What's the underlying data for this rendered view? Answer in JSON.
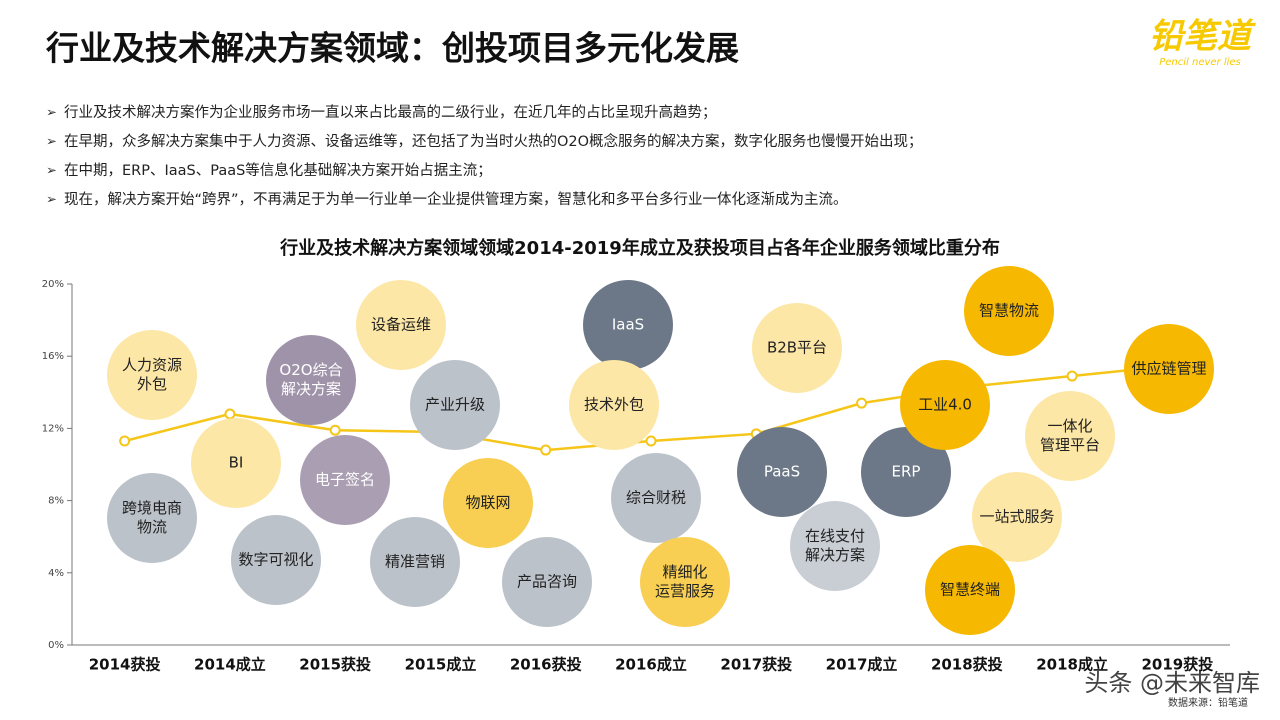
{
  "header": {
    "title": "行业及技术解决方案领域：创投项目多元化发展",
    "bullets": [
      "行业及技术解决方案作为企业服务市场一直以来占比最高的二级行业，在近几年的占比呈现升高趋势；",
      "在早期，众多解决方案集中于人力资源、设备运维等，还包括了为当时火热的O2O概念服务的解决方案，数字化服务也慢慢开始出现；",
      "在中期，ERP、IaaS、PaaS等信息化基础解决方案开始占据主流；",
      "现在，解决方案开始“跨界”，不再满足于为单一行业单一企业提供管理方案，智慧化和多平台多行业一体化逐渐成为主流。"
    ]
  },
  "logo": {
    "text": "铅笔道",
    "tagline": "Pencil never lies"
  },
  "chart_data": {
    "type": "line",
    "title": "行业及技术解决方案领域领域2014-2019年成立及获投项目占各年企业服务领域比重分布",
    "categories": [
      "2014获投",
      "2014成立",
      "2015获投",
      "2015成立",
      "2016获投",
      "2016成立",
      "2017获投",
      "2017成立",
      "2018获投",
      "2018成立",
      "2019获投"
    ],
    "values": [
      11.3,
      12.8,
      11.9,
      11.8,
      10.8,
      11.3,
      11.7,
      13.4,
      14.3,
      14.9,
      15.5
    ],
    "color": "#f5c518",
    "ylim": [
      0,
      20
    ],
    "yticks": [
      {
        "value": 0,
        "label": "0%"
      },
      {
        "value": 4,
        "label": "4%"
      },
      {
        "value": 8,
        "label": "8%"
      },
      {
        "value": 12,
        "label": "12%"
      },
      {
        "value": 16,
        "label": "16%"
      },
      {
        "value": 20,
        "label": "20%"
      }
    ],
    "annotations": [
      {
        "lines": [
          "人力资源",
          "外包"
        ],
        "color": "#fde7a6"
      },
      {
        "lines": [
          "BI"
        ],
        "color": "#fde7a6"
      },
      {
        "lines": [
          "跨境电商",
          "物流"
        ],
        "color": "#bcc2ca"
      },
      {
        "lines": [
          "数字可视化"
        ],
        "color": "#bcc2ca"
      },
      {
        "lines": [
          "O2O综合",
          "解决方案"
        ],
        "color": "#9f93aa"
      },
      {
        "lines": [
          "电子签名"
        ],
        "color": "#a99eb2"
      },
      {
        "lines": [
          "设备运维"
        ],
        "color": "#fde7a6"
      },
      {
        "lines": [
          "产业升级"
        ],
        "color": "#bcc2ca"
      },
      {
        "lines": [
          "物联网"
        ],
        "color": "#f8cf52"
      },
      {
        "lines": [
          "精准营销"
        ],
        "color": "#bcc2ca"
      },
      {
        "lines": [
          "IaaS"
        ],
        "color": "#6c7787"
      },
      {
        "lines": [
          "技术外包"
        ],
        "color": "#fde7a6"
      },
      {
        "lines": [
          "综合财税"
        ],
        "color": "#bcc2ca"
      },
      {
        "lines": [
          "产品咨询"
        ],
        "color": "#bcc2ca"
      },
      {
        "lines": [
          "精细化",
          "运营服务"
        ],
        "color": "#f8cf52"
      },
      {
        "lines": [
          "B2B平台"
        ],
        "color": "#fde7a6"
      },
      {
        "lines": [
          "PaaS"
        ],
        "color": "#6c7787"
      },
      {
        "lines": [
          "在线支付",
          "解决方案"
        ],
        "color": "#c9ced5"
      },
      {
        "lines": [
          "ERP"
        ],
        "color": "#6c7787"
      },
      {
        "lines": [
          "智慧物流"
        ],
        "color": "#f6b800"
      },
      {
        "lines": [
          "工业4.0"
        ],
        "color": "#f6b800"
      },
      {
        "lines": [
          "一体化",
          "管理平台"
        ],
        "color": "#fde7a6"
      },
      {
        "lines": [
          "一站式服务"
        ],
        "color": "#fde7a6"
      },
      {
        "lines": [
          "智慧终端"
        ],
        "color": "#f6b800"
      },
      {
        "lines": [
          "供应链管理"
        ],
        "color": "#f6b800"
      }
    ],
    "source": "数据来源：铅笔道"
  },
  "watermark": "头条 @未来智库"
}
